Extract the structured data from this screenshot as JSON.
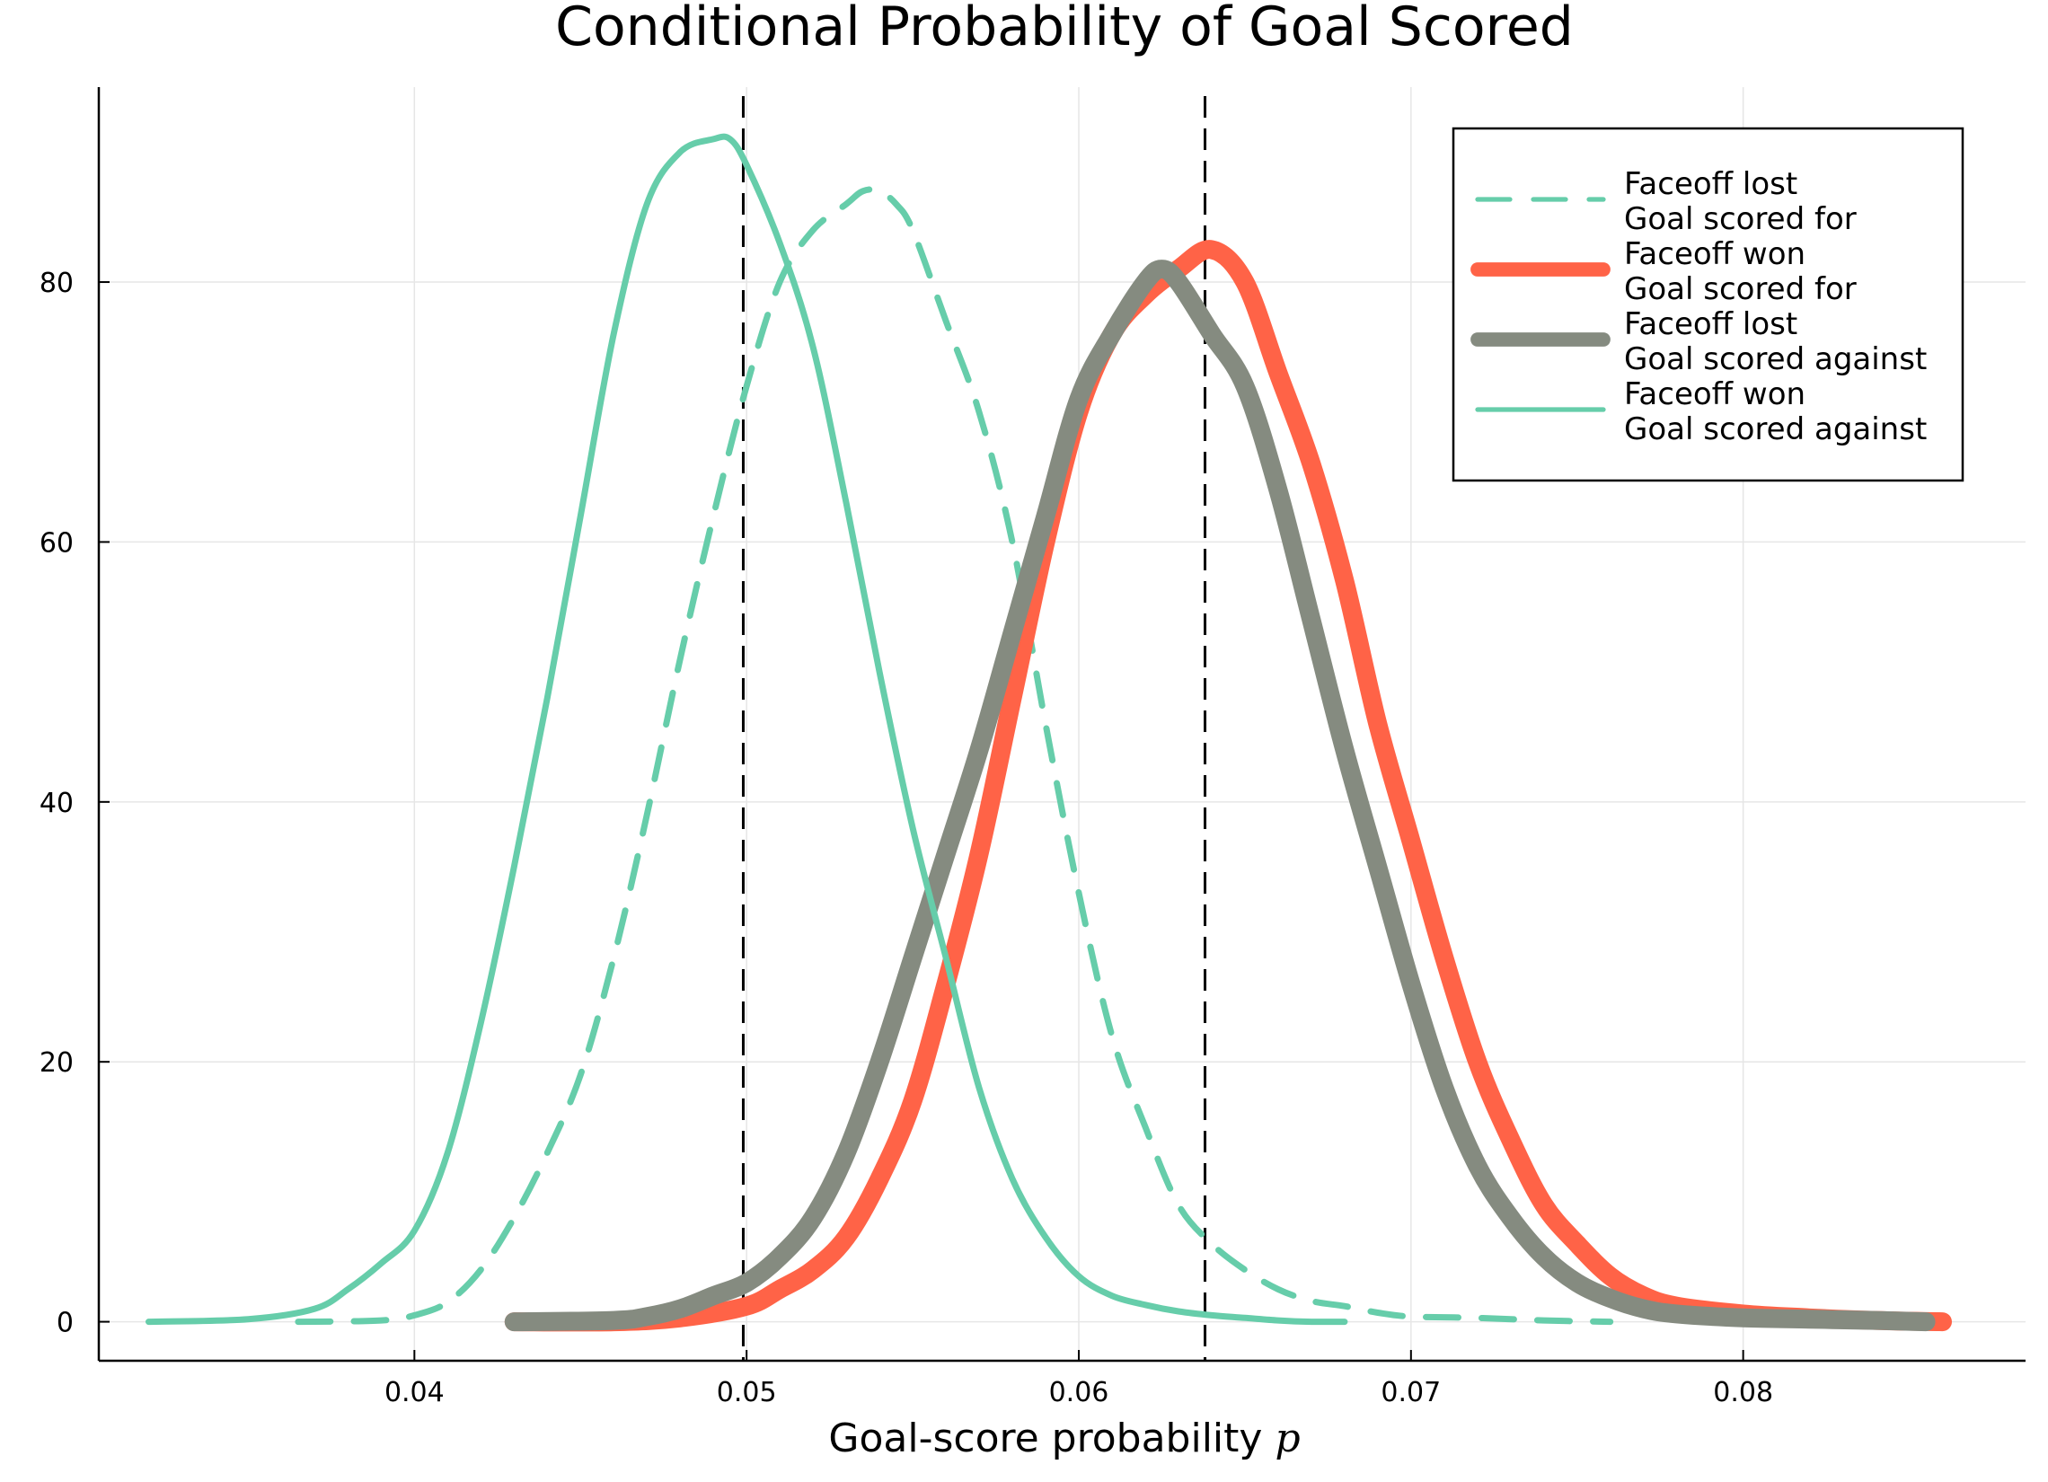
{
  "chart_data": {
    "type": "line",
    "title": "Conditional Probability of Goal Scored",
    "xlabel": "Goal-score probability",
    "xlabel_var": "p",
    "ylabel": "",
    "xlim": [
      0.0305,
      0.0885
    ],
    "ylim": [
      -3,
      95
    ],
    "xticks": [
      0.04,
      0.05,
      0.06,
      0.07,
      0.08
    ],
    "xtick_labels": [
      "0.04",
      "0.05",
      "0.06",
      "0.07",
      "0.08"
    ],
    "yticks": [
      0,
      20,
      40,
      60,
      80
    ],
    "ytick_labels": [
      "0",
      "20",
      "40",
      "60",
      "80"
    ],
    "grid": true,
    "legend_position": "top-right",
    "vlines": [
      0.0499,
      0.0638
    ],
    "series": [
      {
        "name_line1": "Faceoff lost",
        "name_line2": "Goal scored for",
        "color": "#66cdaa",
        "style": "dashed",
        "width": "thin",
        "x": [
          0.0365,
          0.039,
          0.04,
          0.041,
          0.042,
          0.043,
          0.044,
          0.045,
          0.046,
          0.047,
          0.048,
          0.049,
          0.05,
          0.051,
          0.052,
          0.053,
          0.0535,
          0.054,
          0.0545,
          0.055,
          0.056,
          0.057,
          0.058,
          0.059,
          0.06,
          0.061,
          0.062,
          0.063,
          0.064,
          0.065,
          0.066,
          0.067,
          0.068,
          0.069,
          0.07,
          0.072,
          0.074,
          0.076
        ],
        "values": [
          0,
          0.1,
          0.5,
          1.5,
          4,
          8,
          13,
          19,
          28,
          39,
          51,
          62,
          72,
          80,
          84,
          86,
          87,
          87,
          86,
          84,
          77,
          70,
          60,
          46,
          33,
          22,
          15,
          9,
          6,
          4,
          2.5,
          1.6,
          1.2,
          0.7,
          0.4,
          0.3,
          0.1,
          0
        ]
      },
      {
        "name_line1": "Faceoff won",
        "name_line2": "Goal scored for",
        "color": "#ff6347",
        "style": "solid",
        "width": "thick",
        "x": [
          0.043,
          0.046,
          0.048,
          0.05,
          0.051,
          0.052,
          0.053,
          0.054,
          0.055,
          0.056,
          0.057,
          0.058,
          0.059,
          0.06,
          0.061,
          0.062,
          0.063,
          0.064,
          0.065,
          0.066,
          0.067,
          0.068,
          0.069,
          0.07,
          0.071,
          0.072,
          0.073,
          0.074,
          0.075,
          0.076,
          0.077,
          0.078,
          0.08,
          0.082,
          0.084,
          0.086
        ],
        "values": [
          0,
          0,
          0.3,
          1.2,
          2.5,
          4,
          6.5,
          11,
          17,
          26,
          36,
          48,
          60,
          70,
          76,
          79,
          81,
          82.5,
          80,
          73,
          66,
          57,
          46,
          37,
          28,
          20,
          14,
          9,
          6,
          3.5,
          2,
          1.2,
          0.6,
          0.3,
          0.1,
          0
        ]
      },
      {
        "name_line1": "Faceoff lost",
        "name_line2": "Goal scored against",
        "color": "#858b80",
        "style": "solid",
        "width": "thick",
        "x": [
          0.043,
          0.046,
          0.047,
          0.048,
          0.049,
          0.05,
          0.051,
          0.052,
          0.053,
          0.054,
          0.055,
          0.056,
          0.057,
          0.058,
          0.059,
          0.06,
          0.061,
          0.062,
          0.0625,
          0.063,
          0.064,
          0.065,
          0.066,
          0.067,
          0.068,
          0.069,
          0.07,
          0.071,
          0.072,
          0.073,
          0.074,
          0.075,
          0.076,
          0.077,
          0.078,
          0.08,
          0.082,
          0.084,
          0.0855
        ],
        "values": [
          0,
          0.1,
          0.4,
          1,
          2,
          3,
          5,
          8,
          13,
          20,
          28,
          36,
          44,
          53,
          62,
          71,
          76,
          80,
          81,
          80,
          76,
          72,
          64,
          54,
          44,
          35,
          26,
          18,
          12,
          8,
          5,
          3,
          1.8,
          1,
          0.6,
          0.3,
          0.2,
          0.1,
          0
        ]
      },
      {
        "name_line1": "Faceoff won",
        "name_line2": "Goal scored against",
        "color": "#66cdaa",
        "style": "solid",
        "width": "thin",
        "x": [
          0.032,
          0.035,
          0.037,
          0.038,
          0.039,
          0.04,
          0.041,
          0.042,
          0.043,
          0.044,
          0.045,
          0.046,
          0.047,
          0.048,
          0.049,
          0.0495,
          0.05,
          0.051,
          0.052,
          0.053,
          0.054,
          0.055,
          0.056,
          0.057,
          0.058,
          0.059,
          0.06,
          0.061,
          0.062,
          0.063,
          0.064,
          0.065,
          0.066,
          0.067,
          0.068
        ],
        "values": [
          0,
          0.2,
          1,
          2.5,
          4.5,
          7,
          13,
          23,
          35,
          48,
          62,
          76,
          86,
          90,
          91,
          91,
          89,
          83,
          75,
          63,
          50,
          38,
          28,
          18,
          11,
          6.5,
          3.5,
          2,
          1.3,
          0.8,
          0.5,
          0.3,
          0.1,
          0,
          0
        ]
      }
    ]
  }
}
